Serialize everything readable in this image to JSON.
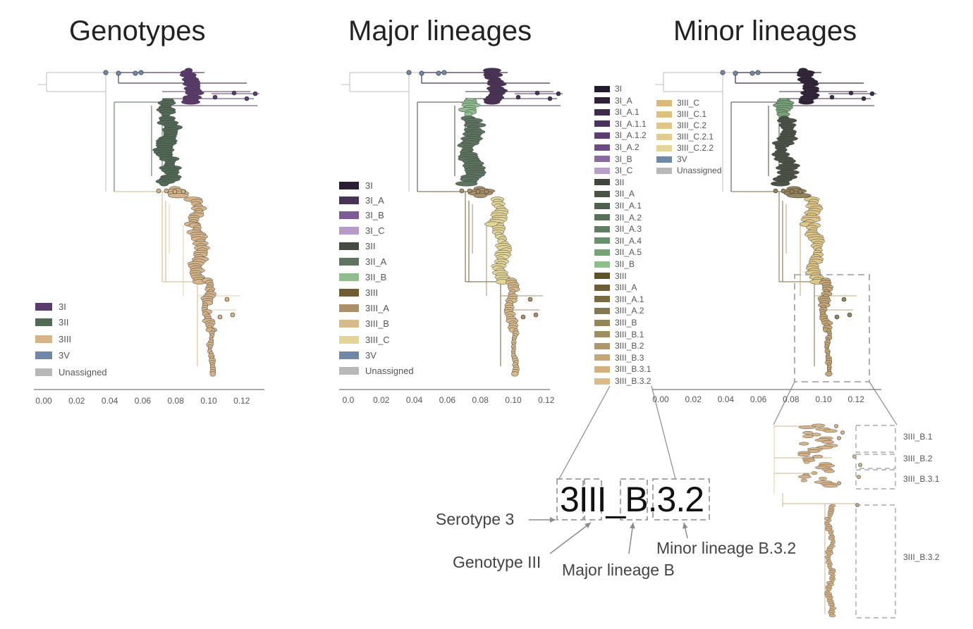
{
  "titles": {
    "genotypes": "Genotypes",
    "major": "Major lineages",
    "minor": "Minor lineages"
  },
  "colors": {
    "3I": "#5b3a6e",
    "3II": "#526b56",
    "3III": "#d7b487",
    "3V": "#7088a8",
    "Unassigned": "#b8b8b8",
    "major_3I": "#2b1e34",
    "major_3I_A": "#4a3158",
    "major_3I_B": "#7b5c93",
    "major_3I_C": "#b59bc6",
    "major_3II": "#454b40",
    "major_3II_A": "#5d7560",
    "major_3II_B": "#8fbd8e",
    "major_3III": "#6e5e33",
    "major_3III_A": "#a99068",
    "major_3III_B": "#d7b98a",
    "major_3III_C": "#e3d596"
  },
  "legends": {
    "genotypes": [
      "3I",
      "3II",
      "3III",
      "3V",
      "Unassigned"
    ],
    "major": [
      "3I",
      "3I_A",
      "3I_B",
      "3I_C",
      "3II",
      "3II_A",
      "3II_B",
      "3III",
      "3III_A",
      "3III_B",
      "3III_C",
      "3V",
      "Unassigned"
    ],
    "minor_col1": [
      "3I",
      "3I_A",
      "3I_A.1",
      "3I_A.1.1",
      "3I_A.1.2",
      "3I_A.2",
      "3I_B",
      "3I_C",
      "3II",
      "3II_A",
      "3II_A.1",
      "3II_A.2",
      "3II_A.3",
      "3II_A.4",
      "3II_A.5",
      "3II_B",
      "3III",
      "3III_A",
      "3III_A.1",
      "3III_A.2",
      "3III_B",
      "3III_B.1",
      "3III_B.2",
      "3III_B.3",
      "3III_B.3.1",
      "3III_B.3.2"
    ],
    "minor_col2": [
      "3III_C",
      "3III_C.1",
      "3III_C.2",
      "3III_C.2.1",
      "3III_C.2.2",
      "3V",
      "Unassigned"
    ]
  },
  "axes": {
    "genotypes_ticks": [
      "0.00",
      "0.02",
      "0.04",
      "0.06",
      "0.08",
      "0.10",
      "0.12"
    ],
    "major_ticks": [
      "0.0",
      "0.02",
      "0.04",
      "0.06",
      "0.08",
      "0.10",
      "0.12"
    ],
    "minor_ticks": [
      "0.00",
      "0.02",
      "0.04",
      "0.06",
      "0.08",
      "0.10",
      "0.12"
    ]
  },
  "zoom_labels": [
    "3III_B.1",
    "3III_B.2",
    "3III_B.3.1",
    "3III_B.3.2"
  ],
  "naming": {
    "code": "3III_B.3.2",
    "serotype": "Serotype 3",
    "genotype": "Genotype III",
    "major": "Major lineage B",
    "minor": "Minor lineage B.3.2"
  }
}
